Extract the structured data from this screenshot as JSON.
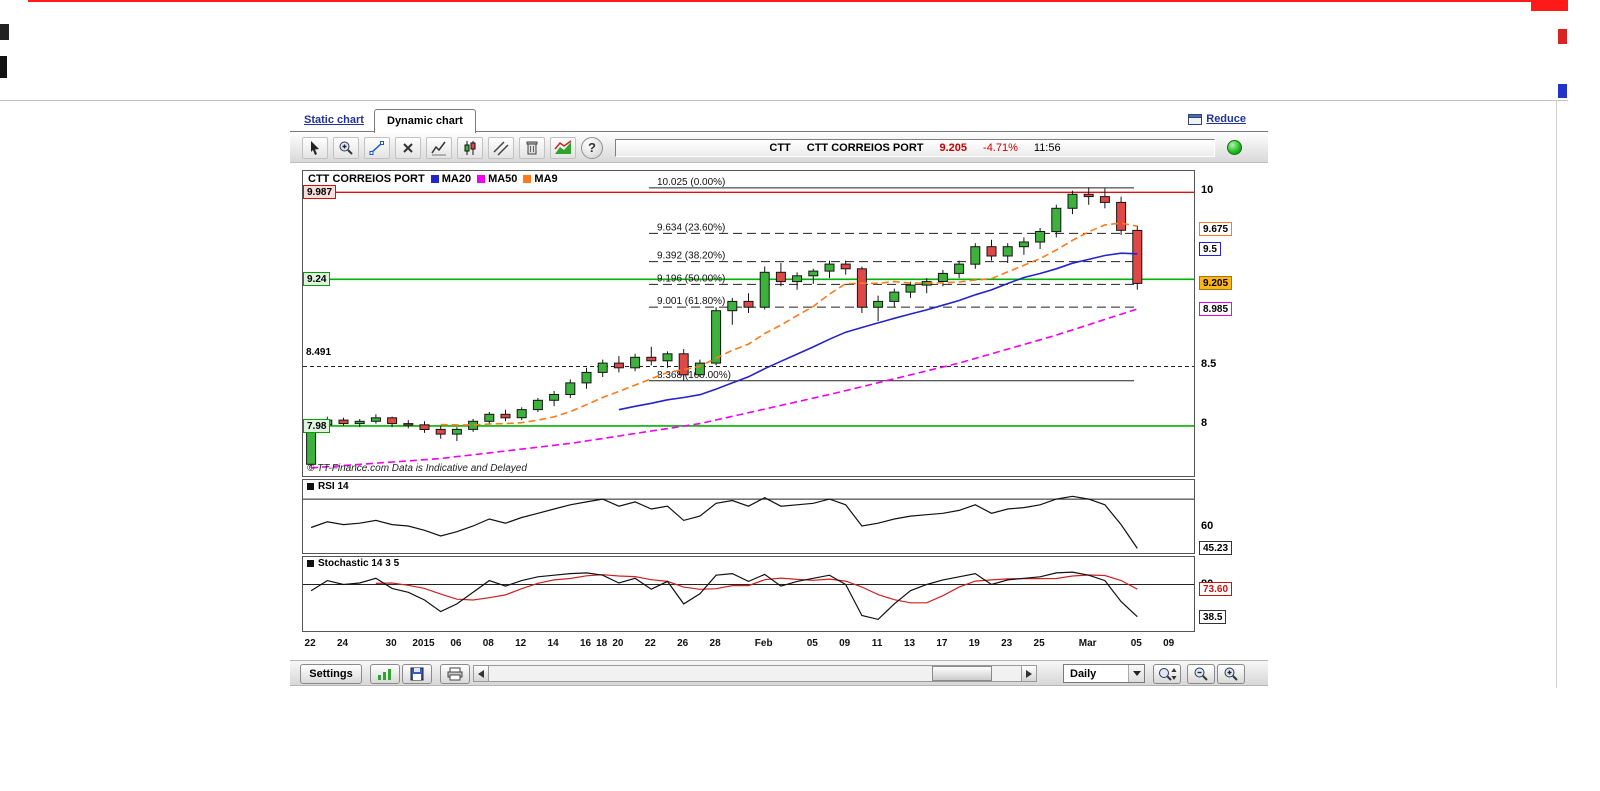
{
  "window": {
    "tabs": {
      "static": "Static chart",
      "dynamic": "Dynamic chart"
    },
    "reduce_label": "Reduce"
  },
  "toolbar": {
    "tools": [
      "cursor",
      "zoom",
      "trendline",
      "delete",
      "indicators",
      "candles",
      "channel",
      "eraser",
      "chart-style",
      "help"
    ],
    "quote": {
      "symbol": "CTT",
      "name": "CTT CORREIOS PORT",
      "price": "9.205",
      "change": "-4.71%",
      "time": "11:56"
    },
    "status_color": "#1db91d"
  },
  "chart": {
    "legend": {
      "symbol": "CTT CORREIOS PORT",
      "series": [
        {
          "label": "MA20",
          "color": "#2424cc"
        },
        {
          "label": "MA50",
          "color": "#f000f0"
        },
        {
          "label": "MA9",
          "color": "#ff7a1a"
        }
      ]
    },
    "footer_note": "© TT-Finance.com   Data is Indicative and Delayed"
  },
  "bottom": {
    "settings_label": "Settings",
    "period_value": "Daily",
    "icons": [
      "export-chart",
      "save",
      "print",
      "scroll-left",
      "scroll-right",
      "zoom-range",
      "zoom-out",
      "zoom-in"
    ]
  },
  "chart_data": {
    "type": "candlestick",
    "symbol": "CTT CORREIOS PORT",
    "period": "Daily",
    "price_range": [
      7.55,
      10.17
    ],
    "x_domain": 55,
    "colors": {
      "up": "#3cb23c",
      "down": "#e04848",
      "ma20": "#2424cc",
      "ma50": "#f000f0",
      "ma9": "#ff7a1a"
    },
    "candles_columns": [
      "date",
      "open",
      "high",
      "low",
      "close"
    ],
    "candles": [
      [
        "Dec 22",
        7.65,
        8.0,
        7.62,
        7.98
      ],
      [
        "Dec 23",
        7.99,
        8.06,
        7.95,
        8.03
      ],
      [
        "Dec 24",
        8.03,
        8.05,
        7.98,
        8.0
      ],
      [
        "Dec 26",
        8.0,
        8.04,
        7.97,
        8.02
      ],
      [
        "Dec 29",
        8.02,
        8.08,
        8.0,
        8.05
      ],
      [
        "Dec 30",
        8.05,
        8.06,
        7.97,
        8.0
      ],
      [
        "Dec 31",
        8.0,
        8.03,
        7.96,
        7.99
      ],
      [
        "Jan 02",
        7.99,
        8.02,
        7.92,
        7.95
      ],
      [
        "Jan 05",
        7.95,
        7.98,
        7.87,
        7.91
      ],
      [
        "Jan 06",
        7.91,
        7.97,
        7.85,
        7.95
      ],
      [
        "Jan 07",
        7.95,
        8.04,
        7.93,
        8.02
      ],
      [
        "Jan 08",
        8.02,
        8.1,
        8.0,
        8.08
      ],
      [
        "Jan 09",
        8.08,
        8.12,
        8.02,
        8.05
      ],
      [
        "Jan 12",
        8.05,
        8.14,
        8.03,
        8.12
      ],
      [
        "Jan 13",
        8.12,
        8.22,
        8.1,
        8.2
      ],
      [
        "Jan 14",
        8.2,
        8.28,
        8.15,
        8.25
      ],
      [
        "Jan 15",
        8.25,
        8.38,
        8.22,
        8.35
      ],
      [
        "Jan 16",
        8.35,
        8.48,
        8.3,
        8.44
      ],
      [
        "Jan 19",
        8.44,
        8.55,
        8.4,
        8.52
      ],
      [
        "Jan 20",
        8.52,
        8.58,
        8.44,
        8.48
      ],
      [
        "Jan 21",
        8.48,
        8.6,
        8.45,
        8.57
      ],
      [
        "Jan 22",
        8.57,
        8.66,
        8.5,
        8.54
      ],
      [
        "Jan 23",
        8.54,
        8.62,
        8.48,
        8.6
      ],
      [
        "Jan 26",
        8.6,
        8.64,
        8.37,
        8.42
      ],
      [
        "Jan 27",
        8.42,
        8.55,
        8.4,
        8.52
      ],
      [
        "Jan 28",
        8.52,
        9.0,
        8.5,
        8.97
      ],
      [
        "Jan 29",
        8.97,
        9.08,
        8.85,
        9.05
      ],
      [
        "Jan 30",
        9.05,
        9.12,
        8.95,
        9.0
      ],
      [
        "Feb 02",
        9.0,
        9.35,
        8.98,
        9.3
      ],
      [
        "Feb 03",
        9.3,
        9.38,
        9.18,
        9.22
      ],
      [
        "Feb 04",
        9.22,
        9.3,
        9.15,
        9.27
      ],
      [
        "Feb 05",
        9.27,
        9.33,
        9.2,
        9.31
      ],
      [
        "Feb 06",
        9.31,
        9.4,
        9.25,
        9.37
      ],
      [
        "Feb 09",
        9.37,
        9.4,
        9.28,
        9.33
      ],
      [
        "Feb 10",
        9.33,
        9.35,
        8.95,
        9.0
      ],
      [
        "Feb 11",
        9.0,
        9.1,
        8.88,
        9.05
      ],
      [
        "Feb 12",
        9.05,
        9.16,
        9.0,
        9.13
      ],
      [
        "Feb 13",
        9.13,
        9.22,
        9.08,
        9.19
      ],
      [
        "Feb 16",
        9.19,
        9.25,
        9.12,
        9.22
      ],
      [
        "Feb 17",
        9.22,
        9.32,
        9.18,
        9.29
      ],
      [
        "Feb 18",
        9.29,
        9.4,
        9.25,
        9.37
      ],
      [
        "Feb 19",
        9.37,
        9.55,
        9.33,
        9.52
      ],
      [
        "Feb 20",
        9.52,
        9.58,
        9.4,
        9.44
      ],
      [
        "Feb 23",
        9.44,
        9.55,
        9.38,
        9.52
      ],
      [
        "Feb 24",
        9.52,
        9.6,
        9.45,
        9.56
      ],
      [
        "Feb 25",
        9.56,
        9.68,
        9.5,
        9.65
      ],
      [
        "Feb 26",
        9.65,
        9.88,
        9.6,
        9.85
      ],
      [
        "Feb 27",
        9.85,
        10.0,
        9.8,
        9.97
      ],
      [
        "Mar 02",
        9.97,
        10.03,
        9.88,
        9.95
      ],
      [
        "Mar 03",
        9.95,
        10.02,
        9.85,
        9.9
      ],
      [
        "Mar 04",
        9.9,
        9.95,
        9.62,
        9.66
      ],
      [
        "Mar 05",
        9.66,
        9.7,
        9.15,
        9.205
      ]
    ],
    "ma50_points": [
      [
        0,
        7.62
      ],
      [
        8,
        7.7
      ],
      [
        16,
        7.83
      ],
      [
        24,
        8.0
      ],
      [
        32,
        8.25
      ],
      [
        40,
        8.52
      ],
      [
        46,
        8.76
      ],
      [
        51,
        8.985
      ]
    ],
    "levels": [
      {
        "value": 9.987,
        "color": "#dd1111",
        "width": 1.3
      },
      {
        "value": 9.24,
        "color": "#00b300",
        "width": 1.6
      },
      {
        "value": 7.98,
        "color": "#00b300",
        "width": 1.6
      },
      {
        "value": 8.491,
        "color": "#222222",
        "width": 1,
        "dash": "4,3"
      }
    ],
    "fibonacci": [
      {
        "label": "10.025 (0.00%)",
        "value": 10.025,
        "dash": false
      },
      {
        "label": "9.634 (23.60%)",
        "value": 9.634,
        "dash": true
      },
      {
        "label": "9.392 (38.20%)",
        "value": 9.392,
        "dash": true
      },
      {
        "label": "9.196 (50.00%)",
        "value": 9.196,
        "dash": true
      },
      {
        "label": "9.001 (61.80%)",
        "value": 9.001,
        "dash": true
      },
      {
        "label": "8.368 (100.00%)",
        "value": 8.368,
        "dash": false
      }
    ],
    "left_labels": [
      {
        "text": "9.987",
        "value": 9.987,
        "kind": "box",
        "border": "#cc1111",
        "bg": "#f7dcdc"
      },
      {
        "text": "9.24",
        "value": 9.24,
        "kind": "box",
        "border": "#00a000",
        "bg": "#dff3df"
      },
      {
        "text": "8.491",
        "value": 8.491,
        "kind": "plain",
        "dy": -13
      },
      {
        "text": "7.98",
        "value": 7.98,
        "kind": "box",
        "border": "#00a000",
        "bg": "#dff3df"
      }
    ],
    "axis_labels": [
      {
        "text": "10",
        "panel": "main",
        "value": 10,
        "kind": "plain"
      },
      {
        "text": "9.675",
        "panel": "main",
        "value": 9.675,
        "kind": "box",
        "border": "#ff7a1a"
      },
      {
        "text": "9.5",
        "panel": "main",
        "value": 9.5,
        "kind": "box",
        "border": "#2424cc"
      },
      {
        "text": "9.205",
        "panel": "main",
        "value": 9.205,
        "kind": "box",
        "border": "#a97700",
        "bg": "#ffb51e"
      },
      {
        "text": "8.985",
        "panel": "main",
        "value": 8.985,
        "kind": "box",
        "border": "#f000f0"
      },
      {
        "text": "8.5",
        "panel": "main",
        "value": 8.5,
        "kind": "plain"
      },
      {
        "text": "8",
        "panel": "main",
        "value": 8,
        "kind": "plain"
      },
      {
        "text": "60",
        "panel": "rsi",
        "value": 60,
        "kind": "plain"
      },
      {
        "text": "45.23",
        "panel": "rsi",
        "value": 45.23,
        "kind": "box",
        "border": "#333333"
      },
      {
        "text": "80",
        "panel": "stoch",
        "value": 80,
        "kind": "plain"
      },
      {
        "text": "73.60",
        "panel": "stoch",
        "value": 73.6,
        "kind": "box",
        "border": "#cc1111",
        "fg": "#cc1111"
      },
      {
        "text": "38.5",
        "panel": "stoch",
        "value": 38.5,
        "kind": "box",
        "border": "#333333"
      }
    ],
    "x_ticks": [
      {
        "label": "22",
        "i": 0
      },
      {
        "label": "24",
        "i": 2
      },
      {
        "label": "30",
        "i": 5
      },
      {
        "label": "2015",
        "i": 7
      },
      {
        "label": "06",
        "i": 9
      },
      {
        "label": "08",
        "i": 11
      },
      {
        "label": "12",
        "i": 13
      },
      {
        "label": "14",
        "i": 15
      },
      {
        "label": "16",
        "i": 17
      },
      {
        "label": "18",
        "i": 18
      },
      {
        "label": "20",
        "i": 19
      },
      {
        "label": "22",
        "i": 21
      },
      {
        "label": "26",
        "i": 23
      },
      {
        "label": "28",
        "i": 25
      },
      {
        "label": "Feb",
        "i": 28
      },
      {
        "label": "05",
        "i": 31
      },
      {
        "label": "09",
        "i": 33
      },
      {
        "label": "11",
        "i": 35
      },
      {
        "label": "13",
        "i": 37
      },
      {
        "label": "17",
        "i": 39
      },
      {
        "label": "19",
        "i": 41
      },
      {
        "label": "23",
        "i": 43
      },
      {
        "label": "25",
        "i": 45
      },
      {
        "label": "Mar",
        "i": 48
      },
      {
        "label": "05",
        "i": 51
      },
      {
        "label": "09",
        "i": 53
      }
    ],
    "rsi": {
      "title": "RSI 14",
      "range": [
        42,
        85
      ],
      "level": 80,
      "last_value": 45.23,
      "values": [
        60,
        64,
        62,
        63,
        65,
        62,
        61,
        58,
        54,
        57,
        61,
        66,
        63,
        67,
        70,
        73,
        76,
        78,
        80,
        75,
        78,
        73,
        75,
        65,
        68,
        77,
        79,
        75,
        81,
        75,
        76,
        77,
        80,
        76,
        61,
        63,
        66,
        68,
        69,
        70,
        72,
        76,
        70,
        73,
        74,
        76,
        80,
        82,
        80,
        76,
        62,
        45.23
      ]
    },
    "stochastic": {
      "title": "Stochastic 14 3 5",
      "range": [
        20,
        100
      ],
      "level": 80,
      "last_k": 38.5,
      "last_d": 73.6,
      "d_smoothing": 5,
      "k_values": [
        72,
        85,
        80,
        82,
        88,
        75,
        70,
        60,
        45,
        55,
        70,
        85,
        78,
        85,
        90,
        92,
        94,
        95,
        92,
        82,
        88,
        74,
        84,
        55,
        68,
        92,
        94,
        84,
        93,
        78,
        84,
        88,
        92,
        80,
        40,
        35,
        55,
        72,
        80,
        86,
        90,
        94,
        80,
        86,
        88,
        90,
        95,
        96,
        92,
        85,
        58,
        38.5
      ]
    }
  }
}
